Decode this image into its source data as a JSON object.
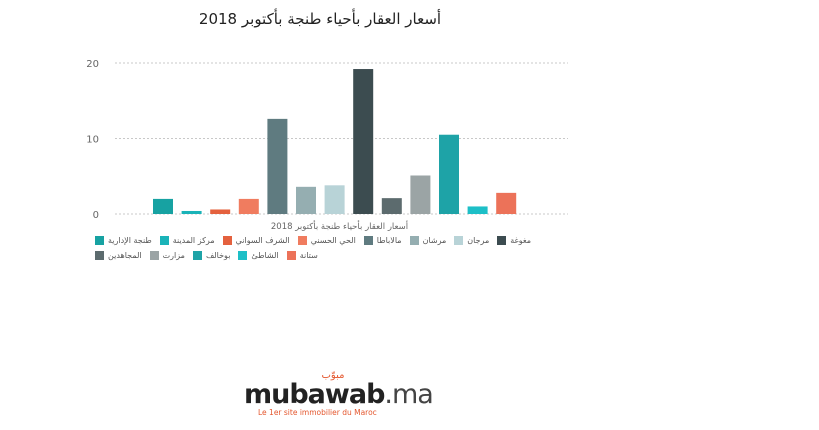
{
  "chart_data": {
    "type": "bar",
    "title": "أسعار العقار بأحياء طنجة بأكتوبر 2018",
    "xlabel": "أسعار العقار بأحياء طنجة بأكتوبر 2018",
    "ylabel": "",
    "ylim": [
      0,
      20
    ],
    "yticks": [
      0,
      10,
      20
    ],
    "grid": true,
    "legend_position": "bottom",
    "series": [
      {
        "name": "طنجة الإدارية",
        "value": 2.0,
        "color": "#17a2a2"
      },
      {
        "name": "مركز المدينة",
        "value": 0.4,
        "color": "#1ab3b8"
      },
      {
        "name": "الشرف السواني",
        "value": 0.6,
        "color": "#e4613e"
      },
      {
        "name": "الحي الحسني",
        "value": 2.0,
        "color": "#f07c5f"
      },
      {
        "name": "مالاباطا",
        "value": 12.6,
        "color": "#5f7b80"
      },
      {
        "name": "مرشان",
        "value": 3.6,
        "color": "#95aeb1"
      },
      {
        "name": "مرجان",
        "value": 3.8,
        "color": "#b8d3d7"
      },
      {
        "name": "مغوغة",
        "value": 19.2,
        "color": "#3c4c50"
      },
      {
        "name": "المجاهدين",
        "value": 2.1,
        "color": "#5c6b6e"
      },
      {
        "name": "مزارت",
        "value": 5.1,
        "color": "#9ba4a5"
      },
      {
        "name": "بوخالف",
        "value": 10.5,
        "color": "#1ea3a7"
      },
      {
        "name": "الشاطئ",
        "value": 1.0,
        "color": "#1dbfc7"
      },
      {
        "name": "ستانة",
        "value": 2.8,
        "color": "#ec7259"
      }
    ]
  },
  "logo": {
    "arabic": "مبوّب",
    "main": "mubawab",
    "suffix": ".ma",
    "tagline": "Le 1er site immobilier du Maroc"
  }
}
